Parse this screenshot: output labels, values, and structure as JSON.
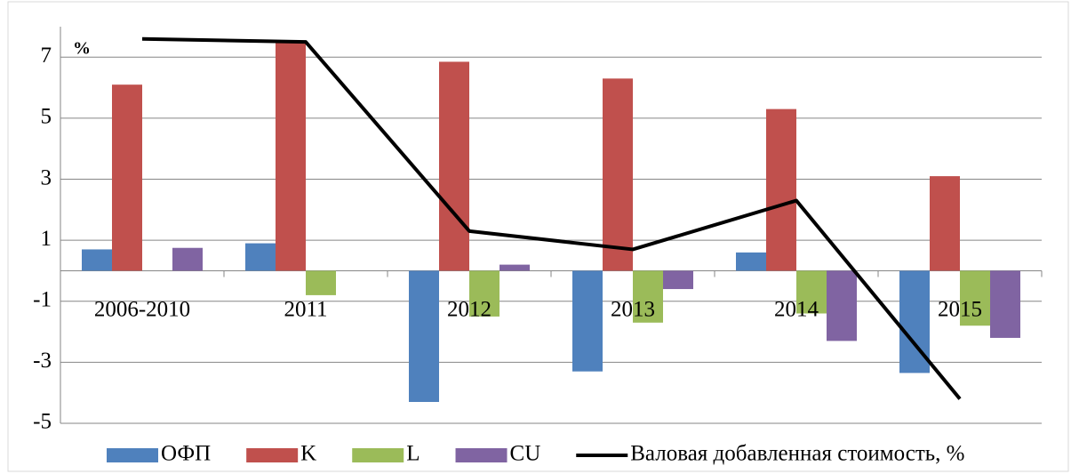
{
  "chart_data": {
    "type": "bar",
    "annotation": "%",
    "categories": [
      "2006-2010",
      "2011",
      "2012",
      "2013",
      "2014",
      "2015"
    ],
    "series": [
      {
        "name": "ОФП",
        "color": "#4f81bd",
        "values": [
          0.7,
          0.9,
          -4.3,
          -3.3,
          0.6,
          -3.35
        ]
      },
      {
        "name": "K",
        "color": "#c0504d",
        "values": [
          6.1,
          7.5,
          6.85,
          6.3,
          5.3,
          3.1
        ]
      },
      {
        "name": "L",
        "color": "#9bbb59",
        "values": [
          0,
          -0.8,
          -1.5,
          -1.7,
          -1.4,
          -1.8
        ]
      },
      {
        "name": "CU",
        "color": "#8064a2",
        "values": [
          0.75,
          0,
          0.2,
          -0.6,
          -2.3,
          -2.2
        ]
      }
    ],
    "line": {
      "name": "Валовая добавленная стоимость, %",
      "color": "#000000",
      "values": [
        7.6,
        7.5,
        1.3,
        0.7,
        2.3,
        -4.2
      ]
    },
    "ylim": [
      -5,
      8
    ],
    "yticks": [
      -5,
      -3,
      -1,
      1,
      3,
      5,
      7
    ],
    "grid": true
  }
}
